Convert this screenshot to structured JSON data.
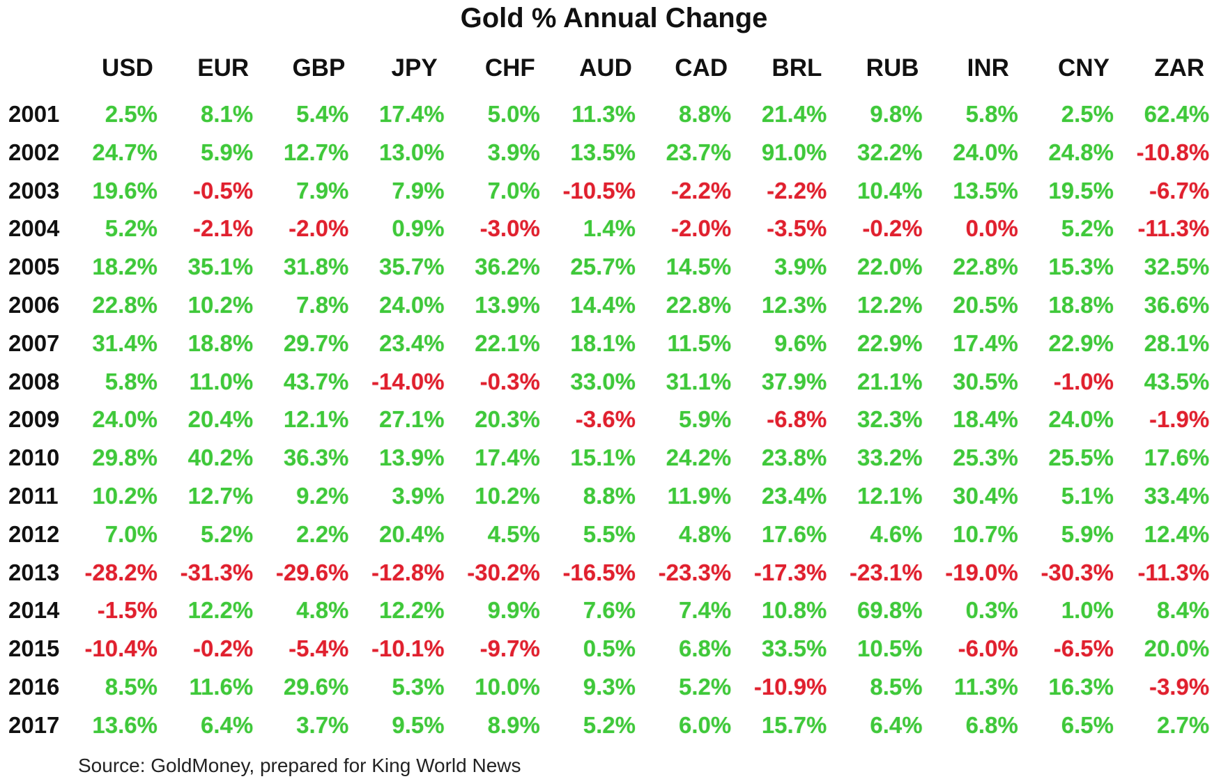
{
  "chart_data": {
    "type": "table",
    "title": "Gold % Annual Change",
    "columns": [
      "USD",
      "EUR",
      "GBP",
      "JPY",
      "CHF",
      "AUD",
      "CAD",
      "BRL",
      "RUB",
      "INR",
      "CNY",
      "ZAR"
    ],
    "rows": [
      {
        "year": "2001",
        "values": [
          "2.5%",
          "8.1%",
          "5.4%",
          "17.4%",
          "5.0%",
          "11.3%",
          "8.8%",
          "21.4%",
          "9.8%",
          "5.8%",
          "2.5%",
          "62.4%"
        ]
      },
      {
        "year": "2002",
        "values": [
          "24.7%",
          "5.9%",
          "12.7%",
          "13.0%",
          "3.9%",
          "13.5%",
          "23.7%",
          "91.0%",
          "32.2%",
          "24.0%",
          "24.8%",
          "-10.8%"
        ]
      },
      {
        "year": "2003",
        "values": [
          "19.6%",
          "-0.5%",
          "7.9%",
          "7.9%",
          "7.0%",
          "-10.5%",
          "-2.2%",
          "-2.2%",
          "10.4%",
          "13.5%",
          "19.5%",
          "-6.7%"
        ]
      },
      {
        "year": "2004",
        "values": [
          "5.2%",
          "-2.1%",
          "-2.0%",
          "0.9%",
          "-3.0%",
          "1.4%",
          "-2.0%",
          "-3.5%",
          "-0.2%",
          "0.0%",
          "5.2%",
          "-11.3%"
        ]
      },
      {
        "year": "2005",
        "values": [
          "18.2%",
          "35.1%",
          "31.8%",
          "35.7%",
          "36.2%",
          "25.7%",
          "14.5%",
          "3.9%",
          "22.0%",
          "22.8%",
          "15.3%",
          "32.5%"
        ]
      },
      {
        "year": "2006",
        "values": [
          "22.8%",
          "10.2%",
          "7.8%",
          "24.0%",
          "13.9%",
          "14.4%",
          "22.8%",
          "12.3%",
          "12.2%",
          "20.5%",
          "18.8%",
          "36.6%"
        ]
      },
      {
        "year": "2007",
        "values": [
          "31.4%",
          "18.8%",
          "29.7%",
          "23.4%",
          "22.1%",
          "18.1%",
          "11.5%",
          "9.6%",
          "22.9%",
          "17.4%",
          "22.9%",
          "28.1%"
        ]
      },
      {
        "year": "2008",
        "values": [
          "5.8%",
          "11.0%",
          "43.7%",
          "-14.0%",
          "-0.3%",
          "33.0%",
          "31.1%",
          "37.9%",
          "21.1%",
          "30.5%",
          "-1.0%",
          "43.5%"
        ]
      },
      {
        "year": "2009",
        "values": [
          "24.0%",
          "20.4%",
          "12.1%",
          "27.1%",
          "20.3%",
          "-3.6%",
          "5.9%",
          "-6.8%",
          "32.3%",
          "18.4%",
          "24.0%",
          "-1.9%"
        ]
      },
      {
        "year": "2010",
        "values": [
          "29.8%",
          "40.2%",
          "36.3%",
          "13.9%",
          "17.4%",
          "15.1%",
          "24.2%",
          "23.8%",
          "33.2%",
          "25.3%",
          "25.5%",
          "17.6%"
        ]
      },
      {
        "year": "2011",
        "values": [
          "10.2%",
          "12.7%",
          "9.2%",
          "3.9%",
          "10.2%",
          "8.8%",
          "11.9%",
          "23.4%",
          "12.1%",
          "30.4%",
          "5.1%",
          "33.4%"
        ]
      },
      {
        "year": "2012",
        "values": [
          "7.0%",
          "5.2%",
          "2.2%",
          "20.4%",
          "4.5%",
          "5.5%",
          "4.8%",
          "17.6%",
          "4.6%",
          "10.7%",
          "5.9%",
          "12.4%"
        ]
      },
      {
        "year": "2013",
        "values": [
          "-28.2%",
          "-31.3%",
          "-29.6%",
          "-12.8%",
          "-30.2%",
          "-16.5%",
          "-23.3%",
          "-17.3%",
          "-23.1%",
          "-19.0%",
          "-30.3%",
          "-11.3%"
        ]
      },
      {
        "year": "2014",
        "values": [
          "-1.5%",
          "12.2%",
          "4.8%",
          "12.2%",
          "9.9%",
          "7.6%",
          "7.4%",
          "10.8%",
          "69.8%",
          "0.3%",
          "1.0%",
          "8.4%"
        ]
      },
      {
        "year": "2015",
        "values": [
          "-10.4%",
          "-0.2%",
          "-5.4%",
          "-10.1%",
          "-9.7%",
          "0.5%",
          "6.8%",
          "33.5%",
          "10.5%",
          "-6.0%",
          "-6.5%",
          "20.0%"
        ]
      },
      {
        "year": "2016",
        "values": [
          "8.5%",
          "11.6%",
          "29.6%",
          "5.3%",
          "10.0%",
          "9.3%",
          "5.2%",
          "-10.9%",
          "8.5%",
          "11.3%",
          "16.3%",
          "-3.9%"
        ]
      },
      {
        "year": "2017",
        "values": [
          "13.6%",
          "6.4%",
          "3.7%",
          "9.5%",
          "8.9%",
          "5.2%",
          "6.0%",
          "15.7%",
          "6.4%",
          "6.8%",
          "6.5%",
          "2.7%"
        ]
      }
    ],
    "colors": {
      "positive": "#3fc83a",
      "negative": "#e0202e",
      "zero": "#e0202e"
    },
    "source": "Source: GoldMoney, prepared for King World News"
  }
}
